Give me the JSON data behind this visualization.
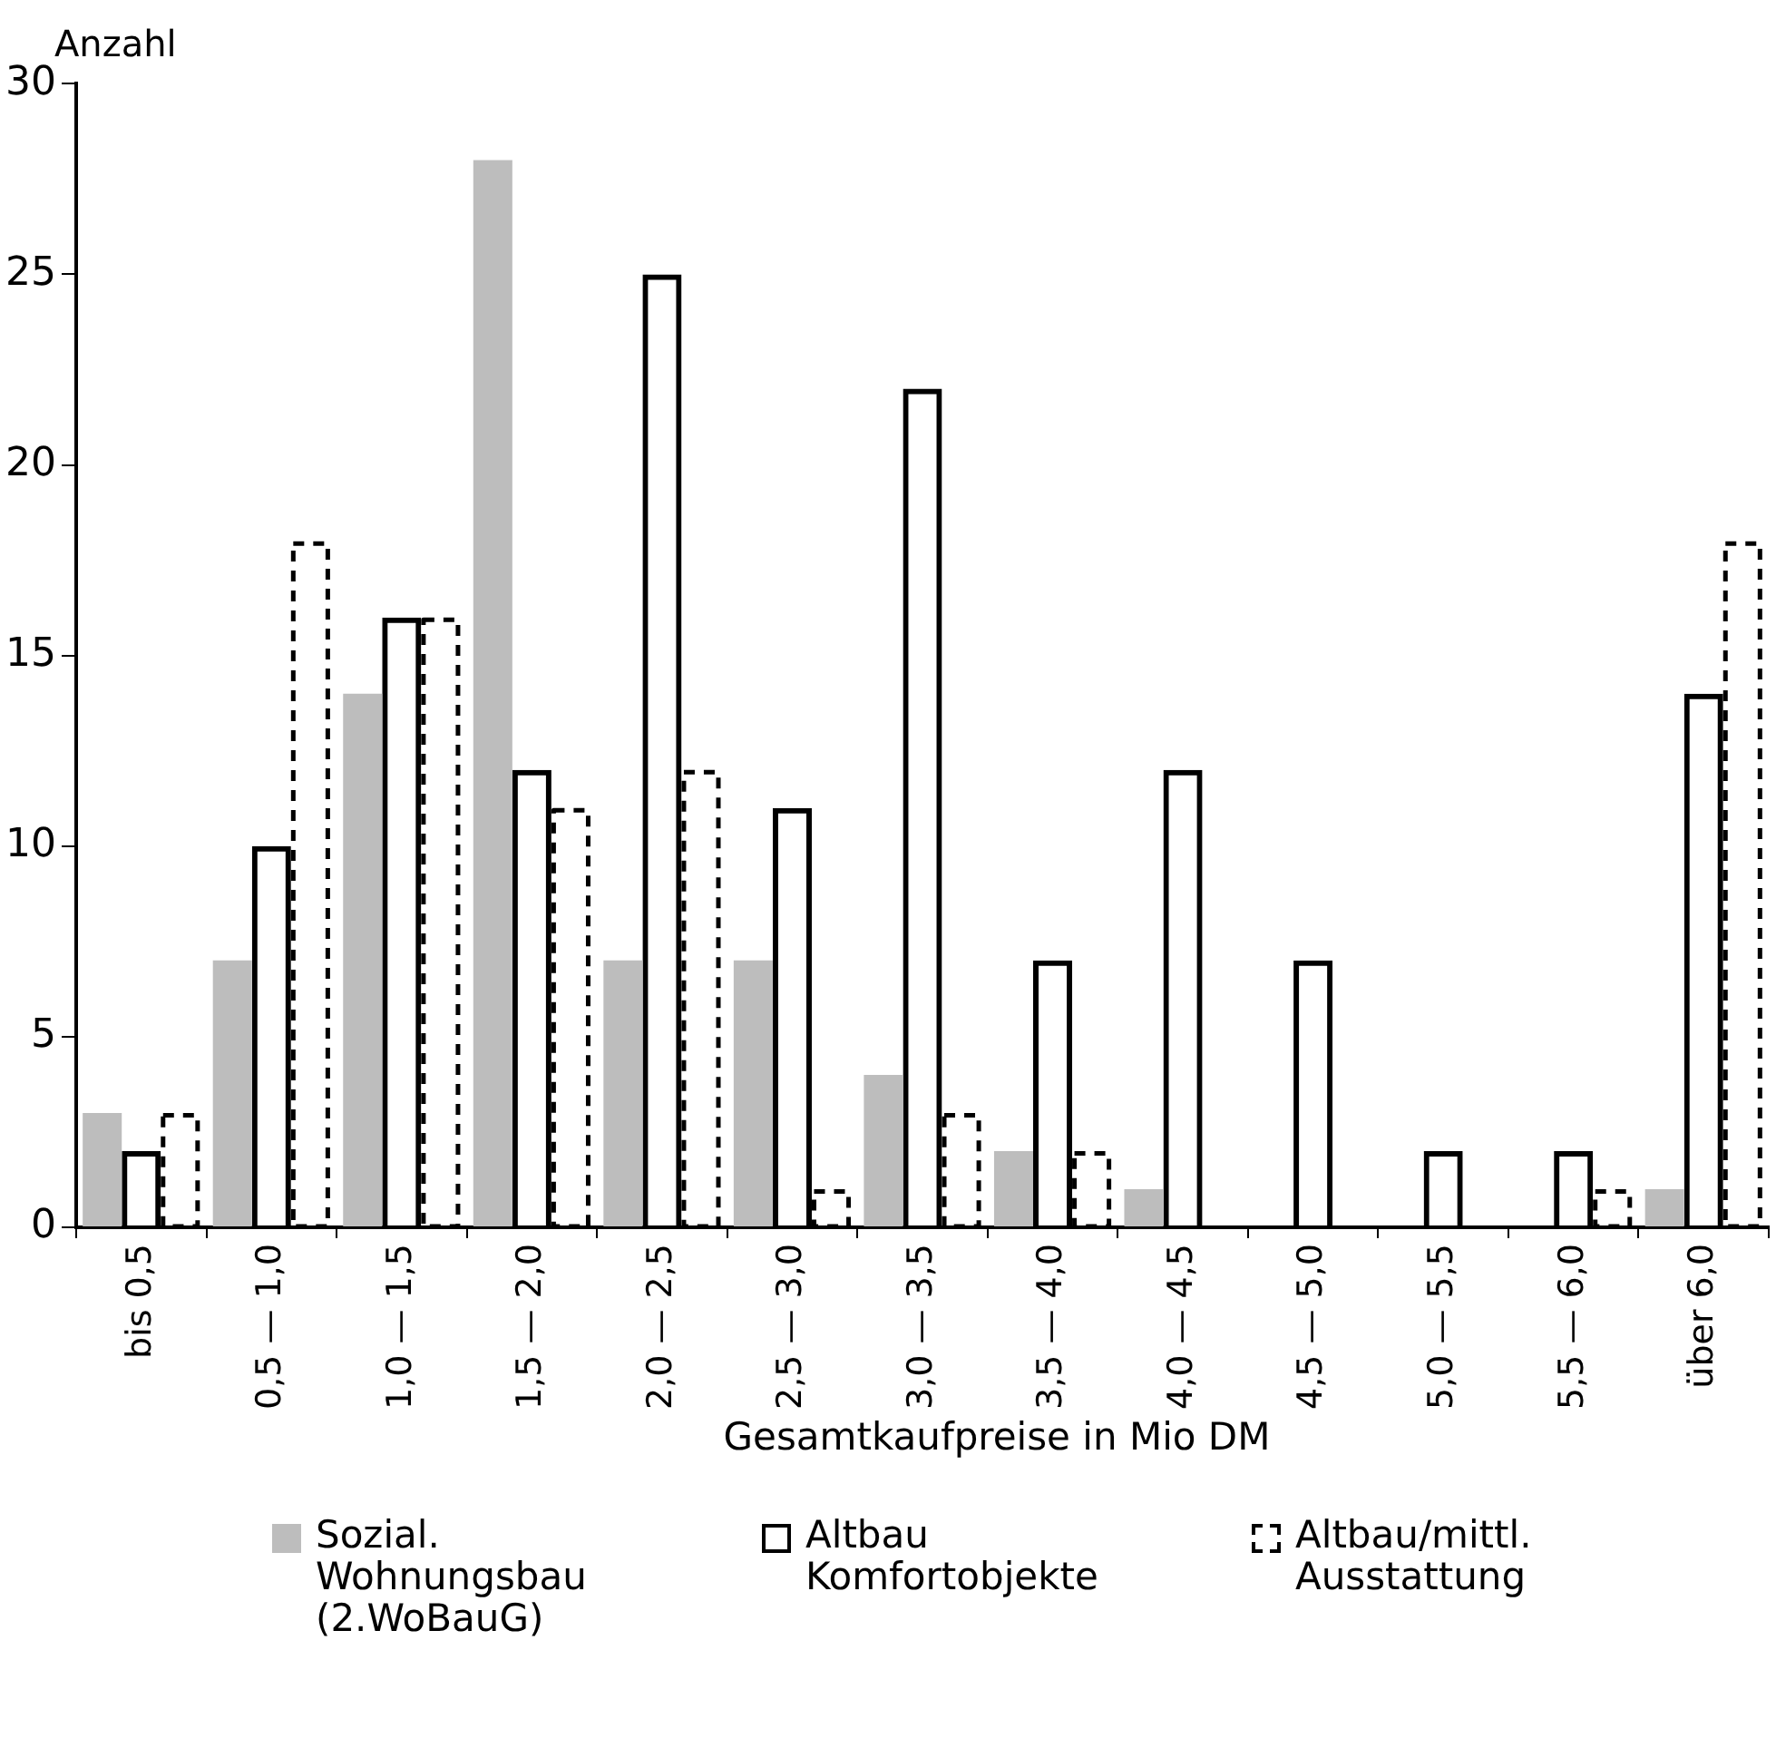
{
  "chart_data": {
    "type": "bar",
    "ylabel": "Anzahl",
    "xlabel": "Gesamtkaufpreise in Mio DM",
    "categories": [
      "bis 0,5",
      "0,5 — 1,0",
      "1,0 — 1,5",
      "1,5 — 2,0",
      "2,0 — 2,5",
      "2,5 — 3,0",
      "3,0 — 3,5",
      "3,5 — 4,0",
      "4,0 — 4,5",
      "4,5 — 5,0",
      "5,0 — 5,5",
      "5,5 — 6,0",
      "über 6,0"
    ],
    "series": [
      {
        "name": "Sozial. Wohnungsbau (2.WoBauG)",
        "color": "#bdbdbd",
        "values": [
          3,
          7,
          14,
          28,
          7,
          7,
          4,
          2,
          1,
          0,
          0,
          0,
          1
        ]
      },
      {
        "name": "Altbau Komfortobjekte",
        "color": "#000000",
        "line_style": "solid",
        "values": [
          2,
          10,
          16,
          12,
          25,
          11,
          22,
          7,
          12,
          7,
          2,
          2,
          14
        ]
      },
      {
        "name": "Altbau/mittl. Ausstattung",
        "color": "#000000",
        "line_style": "dashed",
        "values": [
          3,
          18,
          16,
          11,
          12,
          1,
          3,
          2,
          0,
          0,
          0,
          1,
          18
        ]
      }
    ],
    "ylim": [
      0,
      30
    ],
    "yticks": [
      0,
      5,
      10,
      15,
      20,
      25,
      30
    ],
    "legend": "bottom"
  }
}
